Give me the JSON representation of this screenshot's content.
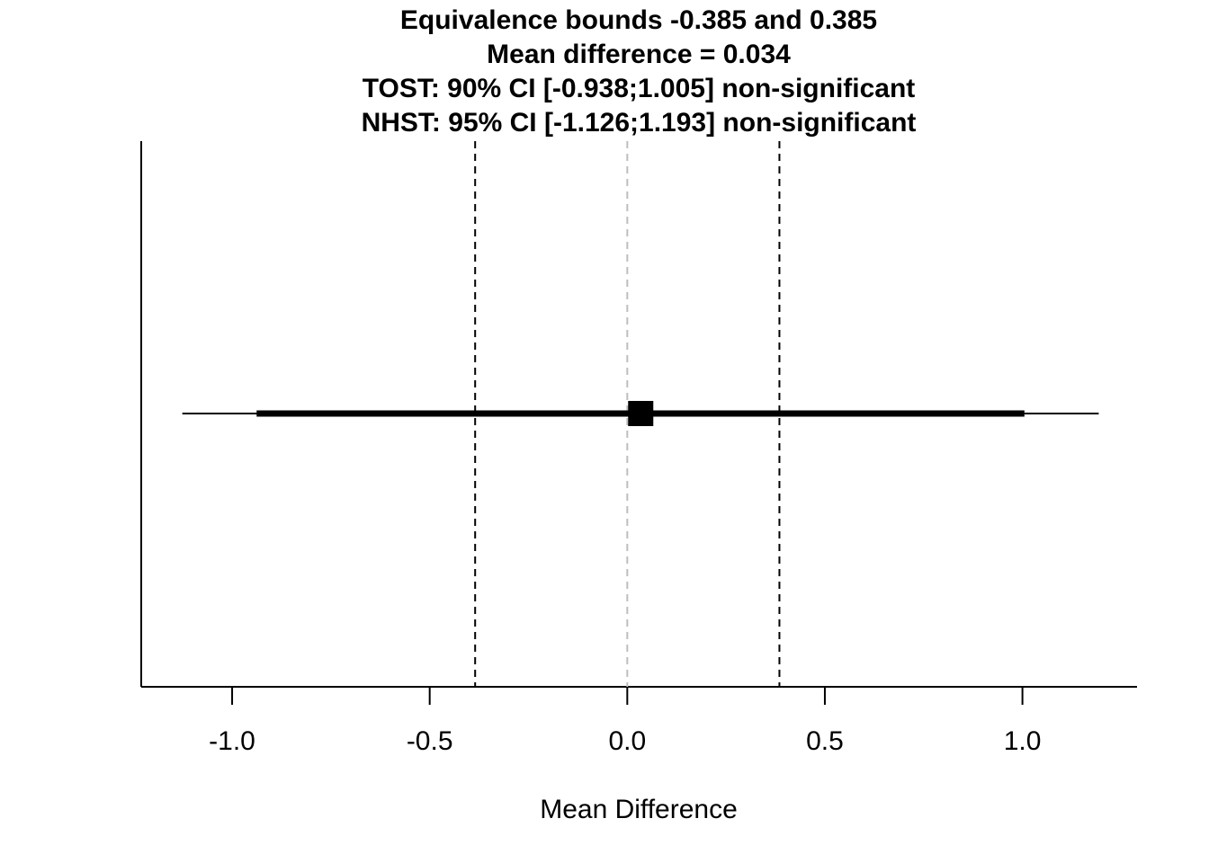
{
  "chart_data": {
    "type": "scatter",
    "title_lines": [
      "Equivalence bounds -0.385 and 0.385",
      "Mean difference = 0.034",
      "TOST: 90% CI [-0.938;1.005] non-significant",
      "NHST: 95% CI [-1.126;1.193] non-significant"
    ],
    "xlabel": "Mean Difference",
    "ylabel": "",
    "xlim": [
      -1.23,
      1.29
    ],
    "xticks": [
      -1.0,
      -0.5,
      0.0,
      0.5,
      1.0
    ],
    "xtick_labels": [
      "-1.0",
      "-0.5",
      "0.0",
      "0.5",
      "1.0"
    ],
    "mean_difference": 0.034,
    "equivalence_bounds": [
      -0.385,
      0.385
    ],
    "ci_90": [
      -0.938,
      1.005
    ],
    "ci_95": [
      -1.126,
      1.193
    ],
    "reference_line": 0.0,
    "grid": false,
    "colors": {
      "point": "#000000",
      "ci": "#000000",
      "bounds": "#000000",
      "reference": "#bebebe"
    }
  }
}
